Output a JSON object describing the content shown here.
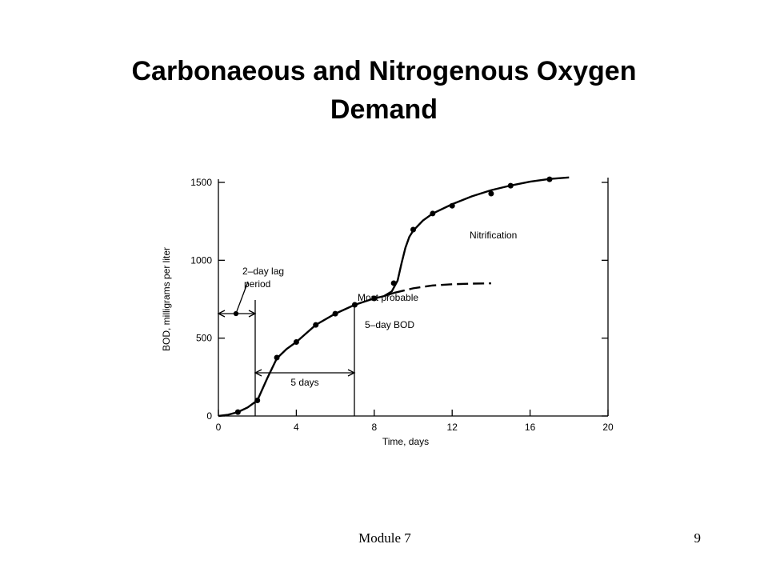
{
  "title": "Carbonaeous and Nitrogenous Oxygen Demand",
  "footer": {
    "left": "Module 7",
    "right": "9"
  },
  "chart_data": {
    "type": "line",
    "xlabel": "Time, days",
    "ylabel": "BOD, milligrams per liter",
    "xlim": [
      0,
      20
    ],
    "ylim": [
      0,
      1500
    ],
    "xticks": [
      0,
      4,
      8,
      12,
      16,
      20
    ],
    "yticks": [
      0,
      500,
      1000,
      1500
    ],
    "series": [
      {
        "color": "#000000",
        "style": "solid",
        "x": [
          0,
          0.5,
          1,
          1.5,
          2,
          2.5,
          3,
          3.5,
          4,
          5,
          6,
          7,
          8,
          8.5,
          9
        ],
        "values": [
          0,
          8,
          25,
          55,
          100,
          240,
          370,
          430,
          475,
          585,
          657,
          714,
          755,
          770,
          790
        ]
      },
      {
        "color": "#000000",
        "style": "dashed",
        "x": [
          9,
          10,
          11,
          12,
          13,
          14
        ],
        "values": [
          790,
          820,
          838,
          846,
          850,
          852
        ]
      },
      {
        "color": "#000000",
        "style": "solid",
        "x": [
          8.5,
          8.9,
          9.2,
          9.4,
          9.6,
          9.8,
          10,
          10.5,
          11,
          12,
          13,
          14,
          15,
          16,
          17,
          18
        ],
        "values": [
          770,
          800,
          870,
          980,
          1080,
          1150,
          1190,
          1255,
          1300,
          1360,
          1410,
          1450,
          1480,
          1505,
          1522,
          1532
        ]
      }
    ],
    "points": {
      "x": [
        1,
        2,
        3,
        4,
        5,
        6,
        7,
        8,
        9,
        10,
        11,
        12,
        14,
        15,
        17
      ],
      "values": [
        25,
        100,
        375,
        475,
        585,
        657,
        714,
        755,
        853,
        1197,
        1300,
        1350,
        1428,
        1479,
        1520
      ]
    },
    "annotations": [
      "2–day lag",
      "period",
      "5 days",
      "Most probable",
      "5–day BOD",
      "Nitrification"
    ]
  }
}
